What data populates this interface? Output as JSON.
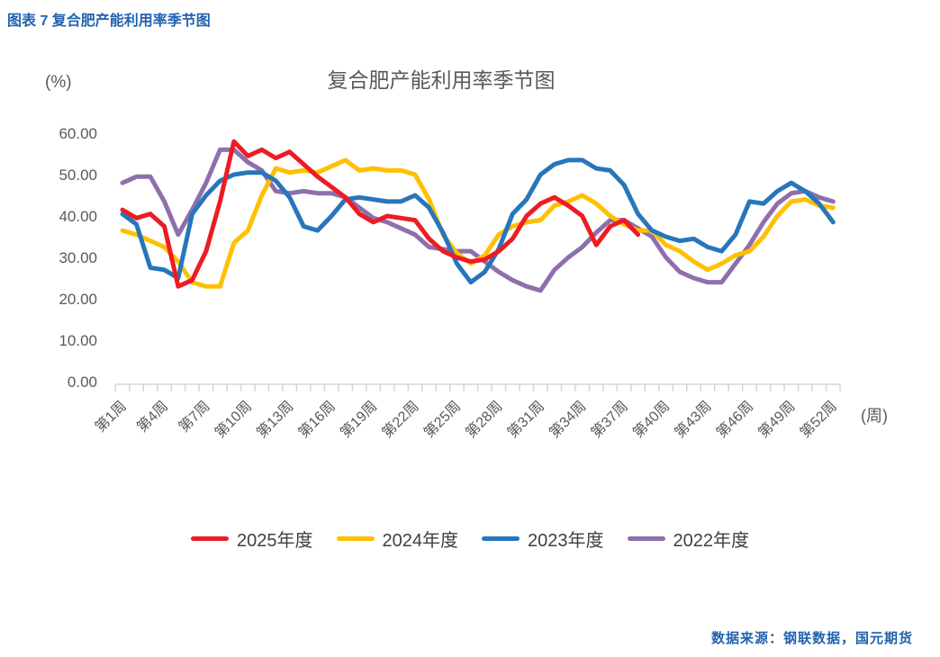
{
  "page": {
    "header": "图表 7 复合肥产能利用率季节图",
    "footer": "数据来源：钢联数据，国元期货",
    "header_color": "#2163AE"
  },
  "chart_data": {
    "type": "line",
    "title": "复合肥产能利用率季节图",
    "y_unit": "(%)",
    "x_unit": "(周)",
    "ylim": [
      0,
      60
    ],
    "grid": false,
    "legend_position": "bottom",
    "y_tick_labels": [
      "0.00",
      "10.00",
      "20.00",
      "30.00",
      "40.00",
      "50.00",
      "60.00"
    ],
    "x_tick_labels": [
      "第1周",
      "第4周",
      "第7周",
      "第10周",
      "第13周",
      "第16周",
      "第19周",
      "第22周",
      "第25周",
      "第28周",
      "第31周",
      "第34周",
      "第37周",
      "第40周",
      "第43周",
      "第46周",
      "第49周",
      "第52周"
    ],
    "weeks": 52,
    "axis_color": "#D6D6D6",
    "text_color": "#595959",
    "series": [
      {
        "name": "2025年度",
        "color": "#ED1C24",
        "values": [
          41.5,
          39.5,
          40.5,
          37.5,
          23,
          24.5,
          31.5,
          43.5,
          58,
          54.5,
          56,
          54,
          55.5,
          52.5,
          49.5,
          47,
          44.5,
          40.5,
          38.5,
          40,
          39.5,
          39,
          34.5,
          31.5,
          30,
          29,
          29.5,
          31.5,
          34.5,
          40,
          43,
          44.5,
          42.5,
          40,
          33,
          37.5,
          39,
          35.5
        ]
      },
      {
        "name": "2024年度",
        "color": "#FFC000",
        "values": [
          36.5,
          35.5,
          34,
          32.5,
          29,
          24,
          23,
          23,
          33.5,
          36.5,
          45,
          51.5,
          50.5,
          51,
          50.5,
          52,
          53.5,
          51,
          51.5,
          51,
          51,
          50,
          44,
          35.5,
          31,
          28.5,
          30.5,
          35.5,
          37.5,
          38.5,
          39,
          42.5,
          43.5,
          45,
          43,
          40,
          38,
          36.5,
          36.5,
          33,
          31.5,
          29,
          27,
          28.5,
          30.5,
          31.5,
          35,
          40,
          43.5,
          44,
          42.5,
          42
        ]
      },
      {
        "name": "2023年度",
        "color": "#2776BB",
        "values": [
          40.5,
          38,
          27.5,
          27,
          25,
          40.5,
          45,
          48.5,
          50,
          50.5,
          50.5,
          48.5,
          44.5,
          37.5,
          36.5,
          40,
          44,
          44.5,
          44,
          43.5,
          43.5,
          45,
          42,
          36,
          28.5,
          24,
          26.5,
          32,
          40.5,
          44,
          50,
          52.5,
          53.5,
          53.5,
          51.5,
          51,
          47.5,
          40.5,
          36.5,
          35,
          34,
          34.5,
          32.5,
          31.5,
          35.5,
          43.5,
          43,
          46,
          48,
          46,
          43,
          38.5
        ]
      },
      {
        "name": "2022年度",
        "color": "#8E6FAD",
        "values": [
          48,
          49.5,
          49.5,
          43.5,
          35.5,
          41.5,
          48,
          56,
          56,
          53,
          51,
          46,
          45.5,
          46,
          45.5,
          45.5,
          44.5,
          42,
          39.5,
          38.5,
          37,
          35.5,
          32.5,
          32,
          31.5,
          31.5,
          29,
          26.5,
          24.5,
          23,
          22,
          27,
          30,
          32.5,
          36,
          39,
          39,
          37,
          35,
          30,
          26.5,
          25,
          24,
          24,
          28.5,
          33,
          38.5,
          43,
          45.5,
          46,
          44.5,
          43.5
        ]
      }
    ]
  }
}
